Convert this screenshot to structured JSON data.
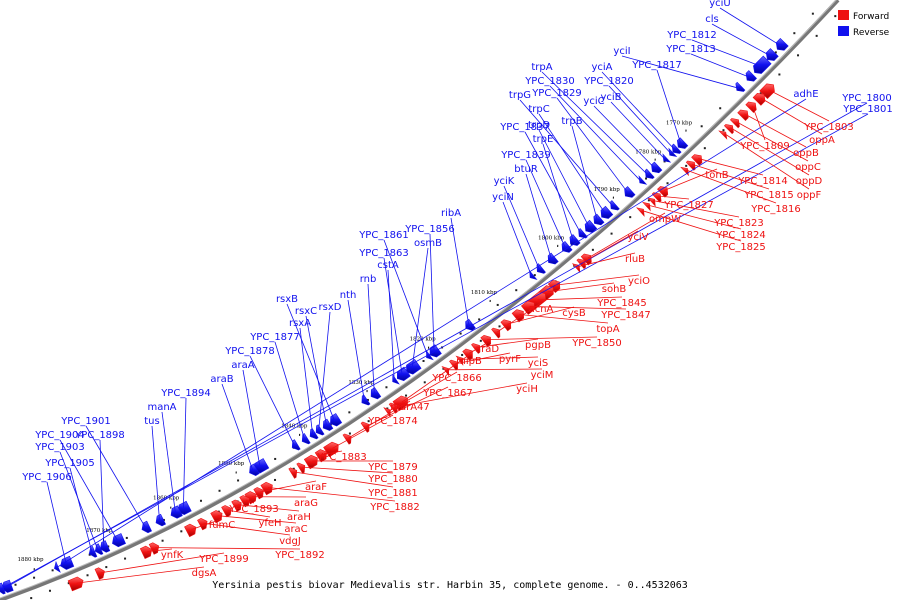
{
  "caption": "Yersinia pestis biovar Medievalis str. Harbin 35, complete genome. - 0..4532063",
  "legend": [
    {
      "label": "Forward",
      "color": "#ee1111"
    },
    {
      "label": "Reverse",
      "color": "#1111ee"
    }
  ],
  "colors": {
    "forward": "#ee1111",
    "reverse": "#1111ee",
    "backbone": "#777777"
  },
  "ticks": [
    "1770 kbp",
    "1780 kbp",
    "1790 kbp",
    "1800 kbp",
    "1810 kbp",
    "1820 kbp",
    "1830 kbp",
    "1840 kbp",
    "1850 kbp",
    "1860 kbp",
    "1870 kbp",
    "1880 kbp"
  ],
  "reverse_genes": [
    "yciU",
    "cls",
    "YPC_1812",
    "YPC_1813",
    "yciI",
    "YPC_1817",
    "yciA",
    "YPC_1820",
    "yciB",
    "yciC",
    "trpA",
    "YPC_1830",
    "YPC_1829",
    "trpG",
    "trpC",
    "trpB",
    "trpD",
    "YPC_1837",
    "trpE",
    "YPC_1839",
    "btuR",
    "yciK",
    "yciN",
    "ribA",
    "YPC_1856",
    "YPC_1861",
    "osmB",
    "YPC_1863",
    "cstA",
    "rnb",
    "nth",
    "rsxB",
    "rsxC",
    "rsxD",
    "rsxA",
    "YPC_1877",
    "YPC_1878",
    "araA",
    "araB",
    "YPC_1894",
    "manA",
    "tus",
    "YPC_1901",
    "YPC_1904",
    "YPC_1898",
    "YPC_1903",
    "YPC_1905",
    "YPC_1906",
    "adhE",
    "YPC_1800",
    "YPC_1801"
  ],
  "forward_genes": [
    "YPC_1803",
    "oppA",
    "YPC_1809",
    "oppB",
    "oppC",
    "oppD",
    "oppF",
    "YPC_1814",
    "YPC_1815",
    "YPC_1816",
    "tonB",
    "YPC_1827",
    "YPC_1823",
    "YPC_1824",
    "YPC_1825",
    "ompW",
    "yciV",
    "rluB",
    "yciO",
    "sohB",
    "YPC_1845",
    "YPC_1847",
    "topA",
    "cysB",
    "acnA",
    "YPC_1850",
    "pgpB",
    "araD",
    "yciS",
    "pyrF",
    "yciM",
    "mipB",
    "yciH",
    "YPC_1866",
    "YPC_1867",
    "marA47",
    "YPC_1874",
    "YPC_1883",
    "YPC_1879",
    "YPC_1880",
    "YPC_1881",
    "YPC_1882",
    "araF",
    "araG",
    "YPC_1893",
    "araH",
    "yfeH",
    "araC",
    "vdgJ",
    "fumC",
    "YPC_1892",
    "ynfK",
    "YPC_1899",
    "dgsA"
  ]
}
